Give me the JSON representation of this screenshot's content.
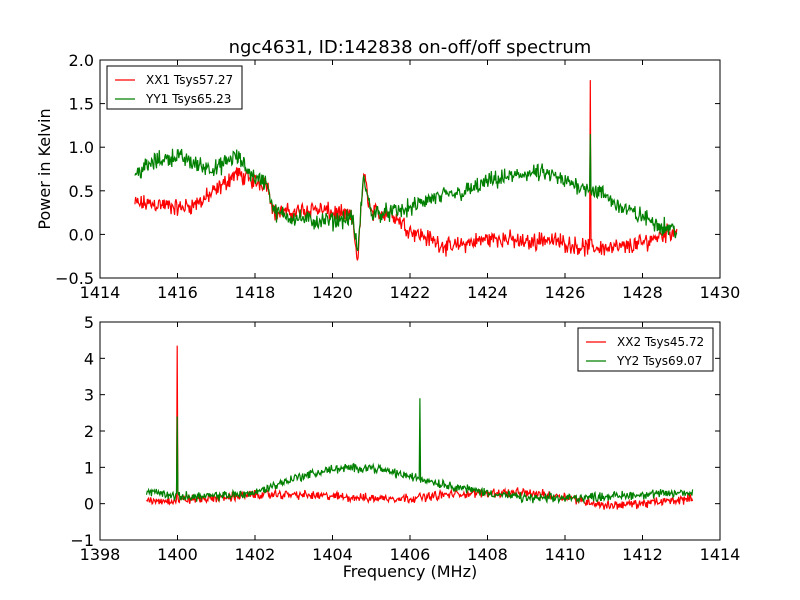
{
  "chart_data": [
    {
      "type": "line",
      "title": "ngc4631, ID:142838 on-off/off spectrum",
      "xlabel": "",
      "ylabel": "Power in Kelvin",
      "xlim": [
        1414,
        1430
      ],
      "ylim": [
        -0.5,
        2.0
      ],
      "xticks": [
        1414,
        1416,
        1418,
        1420,
        1422,
        1424,
        1426,
        1428,
        1430
      ],
      "xtick_labels": [
        "1414",
        "1416",
        "1418",
        "1420",
        "1422",
        "1424",
        "1426",
        "1428",
        "1430"
      ],
      "yticks": [
        -0.5,
        0.0,
        0.5,
        1.0,
        1.5,
        2.0
      ],
      "ytick_labels": [
        "−0.5",
        "0.0",
        "0.5",
        "1.0",
        "1.5",
        "2.0"
      ],
      "legend_position": "top-left",
      "noise": 0.09,
      "series": [
        {
          "name": "XX1 Tsys57.27",
          "color": "#ff0000",
          "x": [
            1414.9,
            1415.5,
            1416,
            1416.5,
            1417,
            1417.5,
            1418,
            1418.3,
            1418.5,
            1419,
            1419.5,
            1420,
            1420.5,
            1420.65,
            1420.8,
            1421,
            1421.5,
            1422,
            1422.5,
            1423,
            1423.5,
            1424,
            1424.5,
            1425,
            1425.5,
            1426,
            1426.5,
            1427,
            1427.5,
            1428,
            1428.5,
            1428.9
          ],
          "y": [
            0.35,
            0.35,
            0.3,
            0.35,
            0.5,
            0.7,
            0.6,
            0.6,
            0.25,
            0.25,
            0.3,
            0.25,
            0.2,
            -0.3,
            0.7,
            0.25,
            0.25,
            0.05,
            -0.05,
            -0.15,
            -0.1,
            -0.05,
            -0.05,
            -0.1,
            -0.05,
            -0.1,
            -0.15,
            -0.15,
            -0.15,
            -0.1,
            0.0,
            0.05
          ],
          "spikes": [
            {
              "x": 1426.65,
              "y": 1.77
            }
          ]
        },
        {
          "name": "YY1 Tsys65.23",
          "color": "#008000",
          "x": [
            1414.9,
            1415.5,
            1416,
            1416.5,
            1417,
            1417.5,
            1418,
            1418.3,
            1418.5,
            1419,
            1419.5,
            1420,
            1420.5,
            1420.65,
            1420.8,
            1421,
            1421.5,
            1422,
            1422.5,
            1423,
            1423.5,
            1424,
            1424.5,
            1425,
            1425.5,
            1426,
            1426.5,
            1427,
            1427.5,
            1428,
            1428.5,
            1428.9
          ],
          "y": [
            0.7,
            0.85,
            0.9,
            0.8,
            0.75,
            0.9,
            0.65,
            0.6,
            0.25,
            0.2,
            0.15,
            0.15,
            0.2,
            -0.2,
            0.65,
            0.25,
            0.25,
            0.3,
            0.4,
            0.45,
            0.5,
            0.6,
            0.65,
            0.7,
            0.7,
            0.6,
            0.55,
            0.45,
            0.3,
            0.2,
            0.1,
            0.05
          ],
          "spikes": [
            {
              "x": 1426.65,
              "y": 1.15
            }
          ]
        }
      ]
    },
    {
      "type": "line",
      "title": "",
      "xlabel": "Frequency (MHz)",
      "ylabel": "",
      "xlim": [
        1398,
        1414
      ],
      "ylim": [
        -1,
        5
      ],
      "xticks": [
        1398,
        1400,
        1402,
        1404,
        1406,
        1408,
        1410,
        1412,
        1414
      ],
      "xtick_labels": [
        "1398",
        "1400",
        "1402",
        "1404",
        "1406",
        "1408",
        "1410",
        "1412",
        "1414"
      ],
      "yticks": [
        -1,
        0,
        1,
        2,
        3,
        4,
        5
      ],
      "ytick_labels": [
        "−1",
        "0",
        "1",
        "2",
        "3",
        "4",
        "5"
      ],
      "legend_position": "top-right",
      "noise": 0.11,
      "series": [
        {
          "name": "XX2 Tsys45.72",
          "color": "#ff0000",
          "x": [
            1399.2,
            1400,
            1401,
            1402,
            1403,
            1404,
            1405,
            1406,
            1407,
            1408,
            1409,
            1410,
            1411,
            1412,
            1413.3
          ],
          "y": [
            0.05,
            0.1,
            0.15,
            0.25,
            0.25,
            0.2,
            0.15,
            0.15,
            0.25,
            0.3,
            0.3,
            0.2,
            -0.05,
            0.0,
            0.15
          ],
          "spikes": [
            {
              "x": 1400.0,
              "y": 4.35
            }
          ]
        },
        {
          "name": "YY2 Tsys69.07",
          "color": "#008000",
          "x": [
            1399.2,
            1400,
            1401,
            1402,
            1403,
            1404,
            1405,
            1406,
            1407,
            1408,
            1409,
            1410,
            1411,
            1412,
            1413.3
          ],
          "y": [
            0.35,
            0.2,
            0.2,
            0.3,
            0.7,
            0.95,
            1.0,
            0.75,
            0.5,
            0.3,
            0.15,
            0.15,
            0.2,
            0.25,
            0.3
          ],
          "spikes": [
            {
              "x": 1400.0,
              "y": 2.4
            },
            {
              "x": 1406.25,
              "y": 2.9
            }
          ]
        }
      ]
    }
  ]
}
